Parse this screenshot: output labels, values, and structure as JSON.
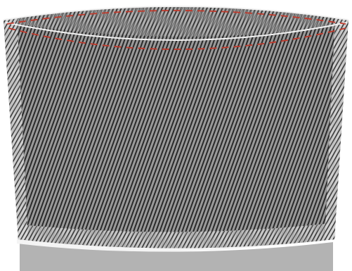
{
  "colors": {
    "background": "#ffffff",
    "fabric_base": "#9a9a9a",
    "fabric_stripe": "#2a2a2a",
    "band_base": "#b3b3b3",
    "edge_light": "#d9d9d9",
    "stitch": "#c0392b",
    "outline": "#f2f2f2"
  },
  "icons": {
    "fabric": "diagonal-stripe-texture",
    "stitches": "dashed-stitch-line"
  }
}
